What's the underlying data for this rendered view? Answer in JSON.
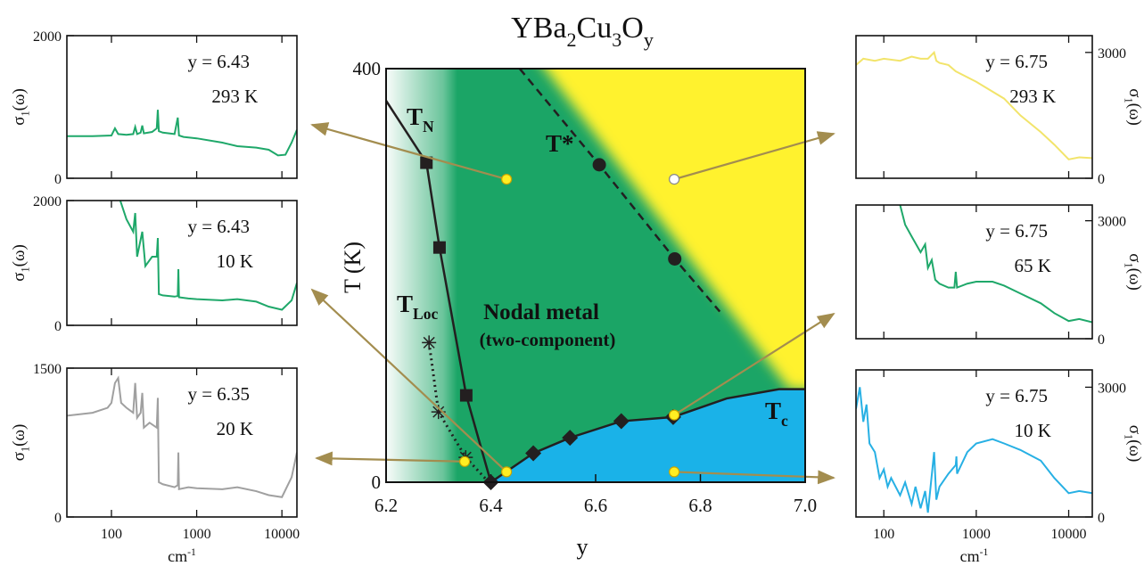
{
  "chart_data": [
    {
      "type": "phase",
      "title": [
        {
          "text": "YBa",
          "sub": "2"
        },
        {
          "text": "Cu",
          "sub": "3"
        },
        {
          "text": "O",
          "sub": "y"
        }
      ],
      "xlabel": "y",
      "ylabel": "T (K)",
      "xlim": [
        6.2,
        7.0
      ],
      "xticks": [
        6.2,
        6.4,
        6.6,
        6.8,
        {
          "value": 7.0,
          "label": "7.0"
        }
      ],
      "ylim": [
        0,
        400
      ],
      "yticks": [
        0,
        400
      ],
      "annotations": [
        "Nodal metal",
        "(two-component)"
      ],
      "series": [
        {
          "label": [
            {
              "text": "T",
              "sub": "N"
            }
          ],
          "color": "#231f20",
          "line": "solid",
          "marker": "square",
          "x": [
            6.2,
            6.277,
            6.302,
            6.353,
            6.4
          ],
          "values": [
            369,
            309,
            227,
            84,
            0
          ],
          "markers": [
            false,
            true,
            true,
            true,
            false
          ]
        },
        {
          "label": [
            {
              "text": "T",
              "sub": "c"
            }
          ],
          "color": "#231f20",
          "line": "solid",
          "marker": "diamond",
          "x": [
            6.4,
            6.481,
            6.551,
            6.649,
            6.748,
            6.85,
            6.95,
            7.0
          ],
          "values": [
            0,
            28,
            43,
            59,
            63,
            81,
            90,
            90
          ],
          "markers": [
            true,
            true,
            true,
            true,
            true,
            false,
            false,
            false
          ]
        },
        {
          "label": [
            {
              "text": "T*"
            }
          ],
          "color": "#231f20",
          "line": "dashed",
          "marker": "circle",
          "x": [
            6.455,
            6.607,
            6.751,
            6.837
          ],
          "values": [
            400,
            307,
            216,
            165
          ],
          "markers": [
            false,
            true,
            true,
            false
          ]
        },
        {
          "label": [
            {
              "text": "T",
              "sub": "Loc"
            }
          ],
          "color": "#231f20",
          "line": "dotted",
          "marker": "asterisk",
          "x": [
            6.282,
            6.3,
            6.352,
            6.396
          ],
          "values": [
            135,
            68,
            24,
            0
          ],
          "markers": [
            true,
            true,
            true,
            false
          ]
        }
      ],
      "measurements": {
        "x": [
          6.43,
          6.43,
          6.35,
          6.75,
          6.75,
          6.75
        ],
        "values": [
          293,
          10,
          20,
          293,
          65,
          10
        ],
        "filled": [
          true,
          true,
          true,
          false,
          true,
          true
        ]
      }
    },
    {
      "type": "line",
      "log_x": true,
      "annotations": [
        "y = 6.43",
        "293 K"
      ],
      "ylabel": [
        {
          "text": "σ",
          "sub": "1"
        },
        {
          "text": "(ω)"
        }
      ],
      "xlim": [
        30,
        15000
      ],
      "xticks": [
        100,
        1000,
        10000
      ],
      "ylim": [
        0,
        2000
      ],
      "yticks": [
        0,
        2000
      ],
      "series": [
        {
          "color": "#1fa86a",
          "x": [
            30,
            60,
            100,
            110,
            120,
            150,
            180,
            190,
            200,
            220,
            230,
            240,
            300,
            340,
            350,
            360,
            400,
            550,
            600,
            620,
            700,
            1000,
            2000,
            3000,
            5000,
            7000,
            9000,
            11000,
            13000,
            15000
          ],
          "values": [
            590,
            590,
            600,
            700,
            620,
            610,
            620,
            720,
            620,
            640,
            740,
            630,
            650,
            700,
            960,
            660,
            640,
            620,
            850,
            600,
            580,
            560,
            500,
            450,
            430,
            400,
            320,
            330,
            500,
            680
          ]
        }
      ]
    },
    {
      "type": "line",
      "log_x": true,
      "annotations": [
        "y = 6.43",
        "10 K"
      ],
      "ylabel": [
        {
          "text": "σ",
          "sub": "1"
        },
        {
          "text": "(ω)"
        }
      ],
      "xlim": [
        30,
        15000
      ],
      "xticks": [
        100,
        1000,
        10000
      ],
      "ylim": [
        0,
        2000
      ],
      "yticks": [
        0,
        2000
      ],
      "series": [
        {
          "color": "#1fa86a",
          "x": [
            120,
            150,
            180,
            190,
            200,
            230,
            250,
            300,
            340,
            350,
            360,
            400,
            550,
            600,
            610,
            620,
            800,
            1000,
            2000,
            3000,
            5000,
            7000,
            10000,
            13000,
            15000
          ],
          "values": [
            2100,
            1700,
            1500,
            1800,
            1100,
            1500,
            950,
            1100,
            1100,
            1400,
            500,
            480,
            460,
            470,
            900,
            450,
            430,
            420,
            400,
            420,
            380,
            300,
            250,
            400,
            680
          ]
        }
      ]
    },
    {
      "type": "line",
      "log_x": true,
      "annotations": [
        "y = 6.35",
        "20 K"
      ],
      "ylabel": [
        {
          "text": "σ",
          "sub": "1"
        },
        {
          "text": "(ω)"
        }
      ],
      "xlabel": [
        {
          "text": "cm",
          "sup": "-1"
        }
      ],
      "xtick_labels": true,
      "xlim": [
        30,
        15000
      ],
      "xticks": [
        100,
        1000,
        10000
      ],
      "ylim": [
        0,
        1500
      ],
      "yticks": [
        0,
        1500
      ],
      "series": [
        {
          "color": "#a0a0a0",
          "x": [
            30,
            60,
            90,
            100,
            110,
            120,
            130,
            150,
            180,
            190,
            200,
            220,
            230,
            240,
            280,
            340,
            350,
            360,
            400,
            550,
            600,
            610,
            620,
            800,
            1000,
            2000,
            3000,
            5000,
            7000,
            10000,
            13000,
            15000
          ],
          "values": [
            1020,
            1050,
            1100,
            1150,
            1350,
            1400,
            1150,
            1100,
            1050,
            1350,
            1000,
            1050,
            1250,
            900,
            950,
            900,
            1200,
            350,
            330,
            300,
            320,
            650,
            280,
            300,
            290,
            280,
            300,
            260,
            220,
            200,
            400,
            650
          ]
        }
      ]
    },
    {
      "type": "line",
      "log_x": true,
      "axis_side": "right",
      "annotations": [
        "y = 6.75",
        "293 K"
      ],
      "ylabel": [
        {
          "text": "σ",
          "sub": "1"
        },
        {
          "text": "(ω)"
        }
      ],
      "xlim": [
        50,
        18000
      ],
      "xticks": [
        100,
        1000,
        10000
      ],
      "ylim": [
        0,
        3400
      ],
      "yticks": [
        0,
        3000
      ],
      "series": [
        {
          "color": "#f2e46b",
          "x": [
            50,
            60,
            80,
            100,
            150,
            200,
            250,
            300,
            350,
            370,
            400,
            500,
            600,
            1000,
            2000,
            3000,
            5000,
            7000,
            10000,
            13000,
            18000
          ],
          "values": [
            2700,
            2850,
            2800,
            2850,
            2800,
            2900,
            2850,
            2850,
            3000,
            2800,
            2750,
            2700,
            2550,
            2300,
            1900,
            1500,
            1100,
            800,
            450,
            500,
            480
          ]
        }
      ]
    },
    {
      "type": "line",
      "log_x": true,
      "axis_side": "right",
      "annotations": [
        "y = 6.75",
        "65 K"
      ],
      "ylabel": [
        {
          "text": "σ",
          "sub": "1"
        },
        {
          "text": "(ω)"
        }
      ],
      "xlim": [
        50,
        18000
      ],
      "xticks": [
        100,
        1000,
        10000
      ],
      "ylim": [
        0,
        3400
      ],
      "yticks": [
        0,
        3000
      ],
      "series": [
        {
          "color": "#1fa86a",
          "x": [
            150,
            170,
            200,
            250,
            280,
            300,
            330,
            360,
            400,
            500,
            580,
            600,
            620,
            800,
            1000,
            1500,
            2000,
            3000,
            5000,
            7000,
            10000,
            13000,
            18000
          ],
          "values": [
            3400,
            2900,
            2600,
            2200,
            2400,
            1800,
            2000,
            1500,
            1400,
            1300,
            1300,
            1700,
            1300,
            1400,
            1450,
            1450,
            1350,
            1150,
            900,
            650,
            450,
            500,
            420
          ]
        }
      ]
    },
    {
      "type": "line",
      "log_x": true,
      "axis_side": "right",
      "annotations": [
        "y = 6.75",
        "10 K"
      ],
      "ylabel": [
        {
          "text": "σ",
          "sub": "1"
        },
        {
          "text": "(ω)"
        }
      ],
      "xlabel": [
        {
          "text": "cm",
          "sup": "-1"
        }
      ],
      "xtick_labels": true,
      "xlim": [
        50,
        18000
      ],
      "xticks": [
        100,
        1000,
        10000
      ],
      "ylim": [
        0,
        3400
      ],
      "yticks": [
        0,
        3000
      ],
      "series": [
        {
          "color": "#27b0e4",
          "x": [
            50,
            55,
            60,
            65,
            70,
            80,
            90,
            100,
            110,
            120,
            150,
            170,
            200,
            220,
            250,
            280,
            300,
            350,
            370,
            400,
            500,
            600,
            610,
            620,
            800,
            1000,
            1500,
            2000,
            3000,
            5000,
            7000,
            10000,
            13000,
            18000
          ],
          "values": [
            2500,
            3000,
            2200,
            2600,
            1700,
            1500,
            900,
            1100,
            700,
            900,
            500,
            800,
            300,
            700,
            200,
            600,
            100,
            1500,
            400,
            700,
            1000,
            1200,
            1400,
            1000,
            1500,
            1700,
            1800,
            1700,
            1550,
            1300,
            900,
            550,
            600,
            550
          ]
        }
      ]
    }
  ]
}
